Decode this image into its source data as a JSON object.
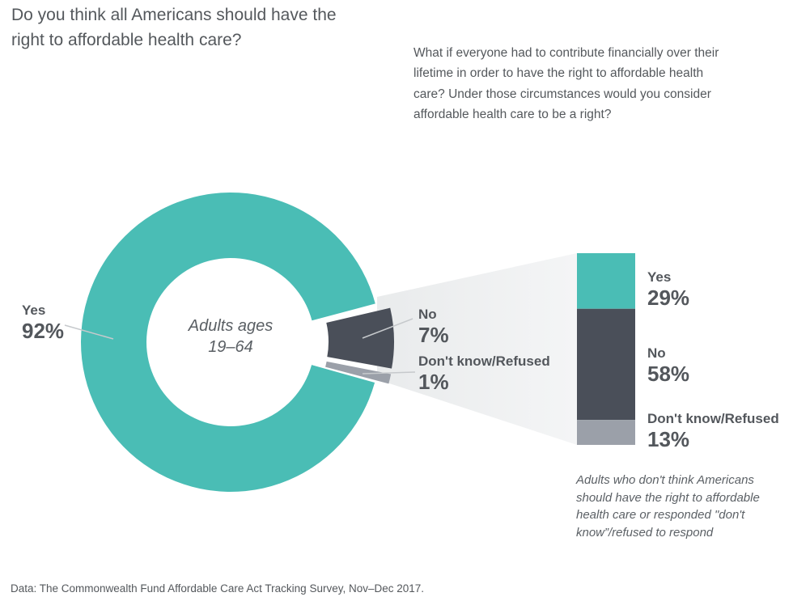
{
  "title_lines": [
    "Do you think all Americans should have the",
    "right to affordable health care?"
  ],
  "followup_lines": [
    "What if everyone had to contribute financially over their",
    "lifetime in order to have the right to affordable health",
    "care? Under those circumstances would you consider",
    "affordable health care to be a right?"
  ],
  "footer": "Data: The Commonwealth Fund Affordable Care Act Tracking Survey, Nov–Dec 2017.",
  "colors": {
    "yes_teal": "#4abdb5",
    "no_dark_gray": "#4a4f59",
    "dk_light_gray": "#9ba0a9",
    "funnel_start": "#e9ebec",
    "funnel_end": "#f4f5f6",
    "leader_line": "#c6c9cc",
    "text_gray": "#54585c"
  },
  "chart_data": [
    {
      "type": "pie",
      "subtype": "exploded-donut",
      "categories": [
        "Yes",
        "No",
        "Don't know/Refused"
      ],
      "values": [
        92,
        7,
        1
      ],
      "unit": "%",
      "colors": [
        "#4abdb5",
        "#4a4f59",
        "#9ba0a9"
      ],
      "center_label": {
        "line1": "Adults ages",
        "line2": "19–64"
      },
      "labels": [
        {
          "name": "Yes",
          "pct": "92%"
        },
        {
          "name": "No",
          "pct": "7%"
        },
        {
          "name": "Don't know/Refused",
          "pct": "1%"
        }
      ],
      "legend_position": "callout-labels",
      "grid": false
    },
    {
      "type": "bar",
      "subtype": "single-stacked-column",
      "categories": [
        "Yes",
        "No",
        "Don't know/Refused"
      ],
      "values": [
        29,
        58,
        13
      ],
      "unit": "%",
      "colors": [
        "#4abdb5",
        "#4a4f59",
        "#9ba0a9"
      ],
      "labels": [
        {
          "name": "Yes",
          "pct": "29%"
        },
        {
          "name": "No",
          "pct": "58%"
        },
        {
          "name": "Don't know/Refused",
          "pct": "13%"
        }
      ],
      "note_lines": [
        "Adults who don't think Americans",
        "should have the right to affordable",
        "health care or responded \"don't",
        "know”/refused to respond"
      ],
      "grid": false
    }
  ]
}
